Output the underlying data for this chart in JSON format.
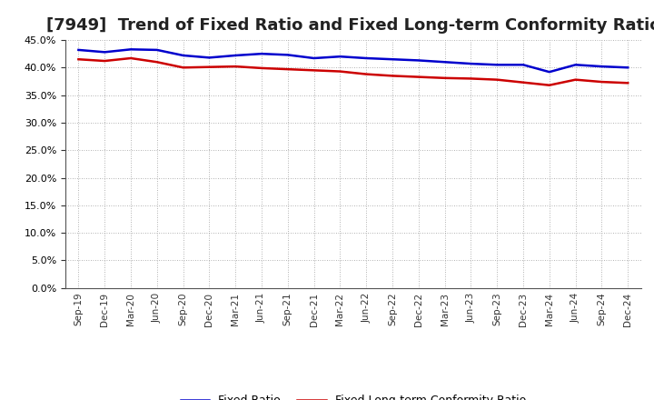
{
  "title": "[7949]  Trend of Fixed Ratio and Fixed Long-term Conformity Ratio",
  "x_labels": [
    "Sep-19",
    "Dec-19",
    "Mar-20",
    "Jun-20",
    "Sep-20",
    "Dec-20",
    "Mar-21",
    "Jun-21",
    "Sep-21",
    "Dec-21",
    "Mar-22",
    "Jun-22",
    "Sep-22",
    "Dec-22",
    "Mar-23",
    "Jun-23",
    "Sep-23",
    "Dec-23",
    "Mar-24",
    "Jun-24",
    "Sep-24",
    "Dec-24"
  ],
  "fixed_ratio": [
    43.2,
    42.8,
    43.3,
    43.2,
    42.2,
    41.8,
    42.2,
    42.5,
    42.3,
    41.7,
    42.0,
    41.7,
    41.5,
    41.3,
    41.0,
    40.7,
    40.5,
    40.5,
    39.2,
    40.5,
    40.2,
    40.0
  ],
  "fixed_lt_ratio": [
    41.5,
    41.2,
    41.7,
    41.0,
    40.0,
    40.1,
    40.2,
    39.9,
    39.7,
    39.5,
    39.3,
    38.8,
    38.5,
    38.3,
    38.1,
    38.0,
    37.8,
    37.3,
    36.8,
    37.8,
    37.4,
    37.2
  ],
  "fixed_ratio_color": "#0000CD",
  "fixed_lt_ratio_color": "#CC0000",
  "ylim": [
    0,
    45
  ],
  "yticks": [
    0.0,
    5.0,
    10.0,
    15.0,
    20.0,
    25.0,
    30.0,
    35.0,
    40.0,
    45.0
  ],
  "background_color": "#FFFFFF",
  "grid_color": "#999999",
  "title_fontsize": 13,
  "legend_labels": [
    "Fixed Ratio",
    "Fixed Long-term Conformity Ratio"
  ]
}
